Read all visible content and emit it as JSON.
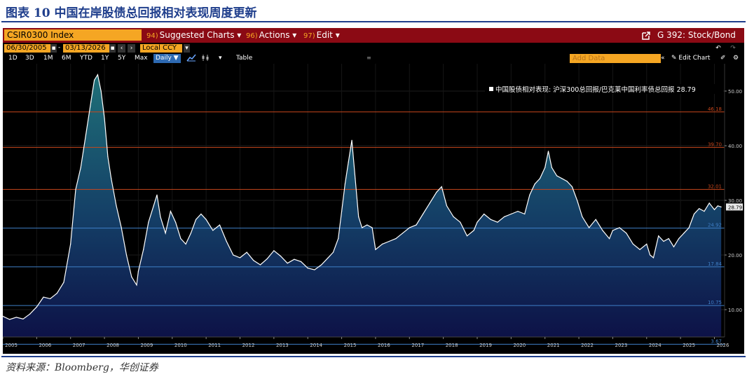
{
  "figure": {
    "title": "图表 10  中国在岸股债总回报相对表现周度更新",
    "source": "资料来源：Bloomberg，华创证券"
  },
  "toolbar": {
    "ticker": "CSIR0300 Index",
    "suggested_num": "94)",
    "suggested": "Suggested Charts ▾",
    "actions_num": "96)",
    "actions": "Actions ▾",
    "edit_num": "97)",
    "edit": "Edit ▾",
    "chart_name": "G 392: Stock/Bond",
    "start_date": "06/30/2005",
    "date_sep": "-",
    "end_date": "03/13/2026",
    "currency": "Local CCY",
    "ranges": [
      "1D",
      "3D",
      "1M",
      "6M",
      "YTD",
      "1Y",
      "5Y",
      "Max"
    ],
    "daily": "Daily ▼",
    "table": "Table",
    "add_data": "Add Data",
    "edit_chart": "Edit Chart"
  },
  "colors": {
    "brand": "#1f3e8c",
    "terminal_bar": "#8b0a14",
    "accent_orange": "#f5a623",
    "series_line": "#ffffff",
    "upper_lines": "#c8471c",
    "lower_lines": "#3f7fc7",
    "area_top": "#1f6f78",
    "area_bottom": "#0d1247"
  },
  "chart_data": {
    "type": "area",
    "legend": "中国股债相对表现: 沪深300总回报/巴克莱中国利率债总回报 28.79",
    "last_value": "28.79",
    "ylim": [
      5,
      55
    ],
    "x_range": [
      2005.0,
      2026.3
    ],
    "yticks": [
      10,
      20,
      30,
      40,
      50
    ],
    "ytick_labels": [
      "10.00",
      "20.00",
      "30.00",
      "40.00",
      "50.00"
    ],
    "xticks": [
      2005,
      2006,
      2007,
      2008,
      2009,
      2010,
      2011,
      2012,
      2013,
      2014,
      2015,
      2016,
      2017,
      2018,
      2019,
      2020,
      2021,
      2022,
      2023,
      2024,
      2025,
      2026
    ],
    "xtick_labels": [
      "2005",
      "2006",
      "2007",
      "2008",
      "2009",
      "2010",
      "2011",
      "2012",
      "2013",
      "2014",
      "2015",
      "2016",
      "2017",
      "2018",
      "2019",
      "2020",
      "2021",
      "2022",
      "2023",
      "2024",
      "2025",
      "2026"
    ],
    "hlines": [
      {
        "value": 46.18,
        "label": "46.18",
        "color": "#c8471c"
      },
      {
        "value": 39.7,
        "label": "39.70",
        "color": "#c8471c"
      },
      {
        "value": 32.01,
        "label": "32.01",
        "color": "#c8471c"
      },
      {
        "value": 24.92,
        "label": "24.92",
        "color": "#3f7fc7"
      },
      {
        "value": 17.84,
        "label": "17.84",
        "color": "#3f7fc7"
      },
      {
        "value": 10.75,
        "label": "10.75",
        "color": "#3f7fc7"
      },
      {
        "value": 3.67,
        "label": "3.67",
        "color": "#3f7fc7"
      }
    ],
    "x": [
      2005.0,
      2005.2,
      2005.4,
      2005.6,
      2005.8,
      2006.0,
      2006.2,
      2006.4,
      2006.6,
      2006.8,
      2007.0,
      2007.15,
      2007.3,
      2007.45,
      2007.6,
      2007.7,
      2007.8,
      2007.9,
      2008.0,
      2008.1,
      2008.2,
      2008.35,
      2008.5,
      2008.65,
      2008.8,
      2008.95,
      2009.0,
      2009.15,
      2009.3,
      2009.45,
      2009.55,
      2009.65,
      2009.8,
      2009.95,
      2010.1,
      2010.25,
      2010.4,
      2010.55,
      2010.7,
      2010.85,
      2011.0,
      2011.2,
      2011.4,
      2011.6,
      2011.8,
      2012.0,
      2012.2,
      2012.4,
      2012.6,
      2012.8,
      2013.0,
      2013.2,
      2013.4,
      2013.6,
      2013.8,
      2014.0,
      2014.2,
      2014.4,
      2014.6,
      2014.75,
      2014.9,
      2015.0,
      2015.1,
      2015.2,
      2015.3,
      2015.4,
      2015.5,
      2015.6,
      2015.75,
      2015.9,
      2016.0,
      2016.2,
      2016.4,
      2016.6,
      2016.8,
      2017.0,
      2017.2,
      2017.4,
      2017.6,
      2017.8,
      2017.95,
      2018.1,
      2018.3,
      2018.5,
      2018.7,
      2018.9,
      2019.0,
      2019.2,
      2019.4,
      2019.6,
      2019.8,
      2020.0,
      2020.2,
      2020.4,
      2020.55,
      2020.7,
      2020.85,
      2021.0,
      2021.1,
      2021.2,
      2021.35,
      2021.5,
      2021.65,
      2021.8,
      2021.95,
      2022.1,
      2022.3,
      2022.5,
      2022.7,
      2022.9,
      2023.0,
      2023.2,
      2023.4,
      2023.6,
      2023.8,
      2024.0,
      2024.1,
      2024.2,
      2024.35,
      2024.5,
      2024.65,
      2024.8,
      2024.95,
      2025.1,
      2025.25,
      2025.4,
      2025.55,
      2025.7,
      2025.85,
      2026.0,
      2026.1,
      2026.2
    ],
    "y": [
      8.8,
      8.2,
      8.6,
      8.3,
      9.2,
      10.5,
      12.3,
      12.0,
      13.0,
      15.0,
      22.0,
      32.0,
      36.0,
      42.0,
      48.0,
      52.0,
      53.0,
      50.0,
      45.0,
      38.0,
      34.0,
      29.0,
      25.0,
      20.0,
      16.0,
      14.5,
      17.0,
      21.0,
      26.0,
      29.0,
      31.0,
      27.0,
      24.0,
      28.0,
      26.0,
      23.0,
      22.0,
      24.0,
      26.5,
      27.5,
      26.5,
      24.5,
      25.5,
      22.5,
      20.0,
      19.5,
      20.5,
      19.0,
      18.2,
      19.3,
      20.8,
      19.8,
      18.5,
      19.2,
      18.8,
      17.6,
      17.3,
      18.2,
      19.5,
      20.5,
      23.0,
      28.0,
      33.0,
      37.0,
      41.0,
      34.0,
      27.0,
      25.0,
      25.5,
      25.0,
      21.0,
      22.0,
      22.5,
      23.0,
      24.0,
      25.0,
      25.5,
      27.5,
      29.5,
      31.5,
      32.5,
      29.0,
      27.0,
      26.0,
      23.5,
      24.5,
      26.0,
      27.5,
      26.5,
      26.0,
      27.0,
      27.5,
      28.0,
      27.5,
      31.0,
      33.0,
      34.0,
      36.0,
      39.0,
      36.0,
      34.5,
      34.0,
      33.5,
      32.5,
      30.0,
      27.0,
      25.0,
      26.5,
      24.5,
      23.0,
      24.5,
      25.0,
      24.0,
      22.0,
      21.0,
      22.0,
      20.0,
      19.5,
      23.5,
      22.5,
      23.0,
      21.5,
      23.0,
      24.0,
      25.0,
      27.5,
      28.5,
      28.0,
      29.5,
      28.3,
      29.0,
      28.79
    ]
  }
}
